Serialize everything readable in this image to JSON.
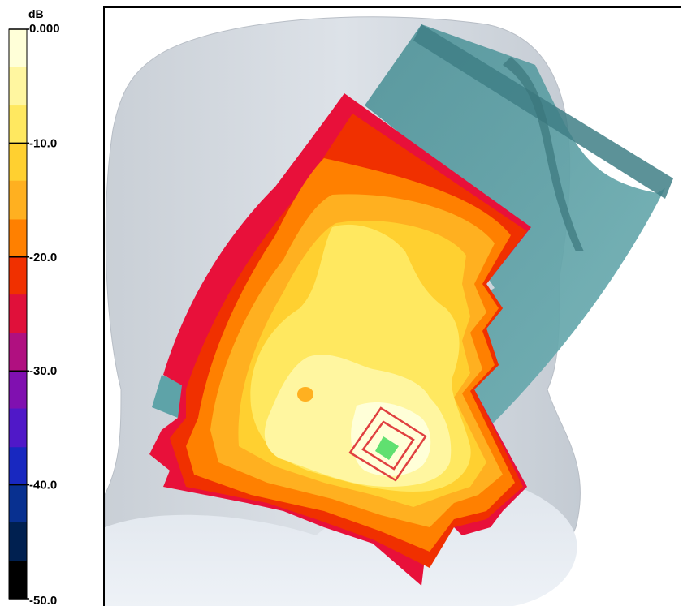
{
  "chart_data": {
    "type": "heatmap",
    "title": "",
    "colorbar": {
      "unit": "dB",
      "range": [
        -50,
        0
      ],
      "ticks": [
        {
          "value": 0,
          "label": "0.000"
        },
        {
          "value": -10,
          "label": "-10.0"
        },
        {
          "value": -20,
          "label": "-20.0"
        },
        {
          "value": -30,
          "label": "-30.0"
        },
        {
          "value": -40,
          "label": "-40.0"
        },
        {
          "value": -50,
          "label": "-50.0"
        }
      ],
      "bands": [
        {
          "from": 0,
          "to": -3.3,
          "color": "#ffffd8"
        },
        {
          "from": -3.3,
          "to": -6.7,
          "color": "#fff6a0"
        },
        {
          "from": -6.7,
          "to": -10,
          "color": "#ffe860"
        },
        {
          "from": -10,
          "to": -13.3,
          "color": "#ffd030"
        },
        {
          "from": -13.3,
          "to": -16.7,
          "color": "#ffb020"
        },
        {
          "from": -16.7,
          "to": -20,
          "color": "#ff8000"
        },
        {
          "from": -20,
          "to": -23.3,
          "color": "#f03000"
        },
        {
          "from": -23.3,
          "to": -26.7,
          "color": "#e0103a"
        },
        {
          "from": -26.7,
          "to": -30,
          "color": "#b01080"
        },
        {
          "from": -30,
          "to": -33.3,
          "color": "#8010b0"
        },
        {
          "from": -33.3,
          "to": -36.7,
          "color": "#5018c8"
        },
        {
          "from": -36.7,
          "to": -40,
          "color": "#1828c0"
        },
        {
          "from": -40,
          "to": -43.3,
          "color": "#083090"
        },
        {
          "from": -43.3,
          "to": -46.7,
          "color": "#002050"
        },
        {
          "from": -46.7,
          "to": -50,
          "color": "#000000"
        }
      ]
    },
    "field_peak_dB": 0,
    "colors": {
      "head": "#d3d9e0",
      "phone": "#5ea3a8",
      "phone_dark": "#3f7f86",
      "peak_marker": "#e04040",
      "peak_point": "#60e070"
    }
  }
}
